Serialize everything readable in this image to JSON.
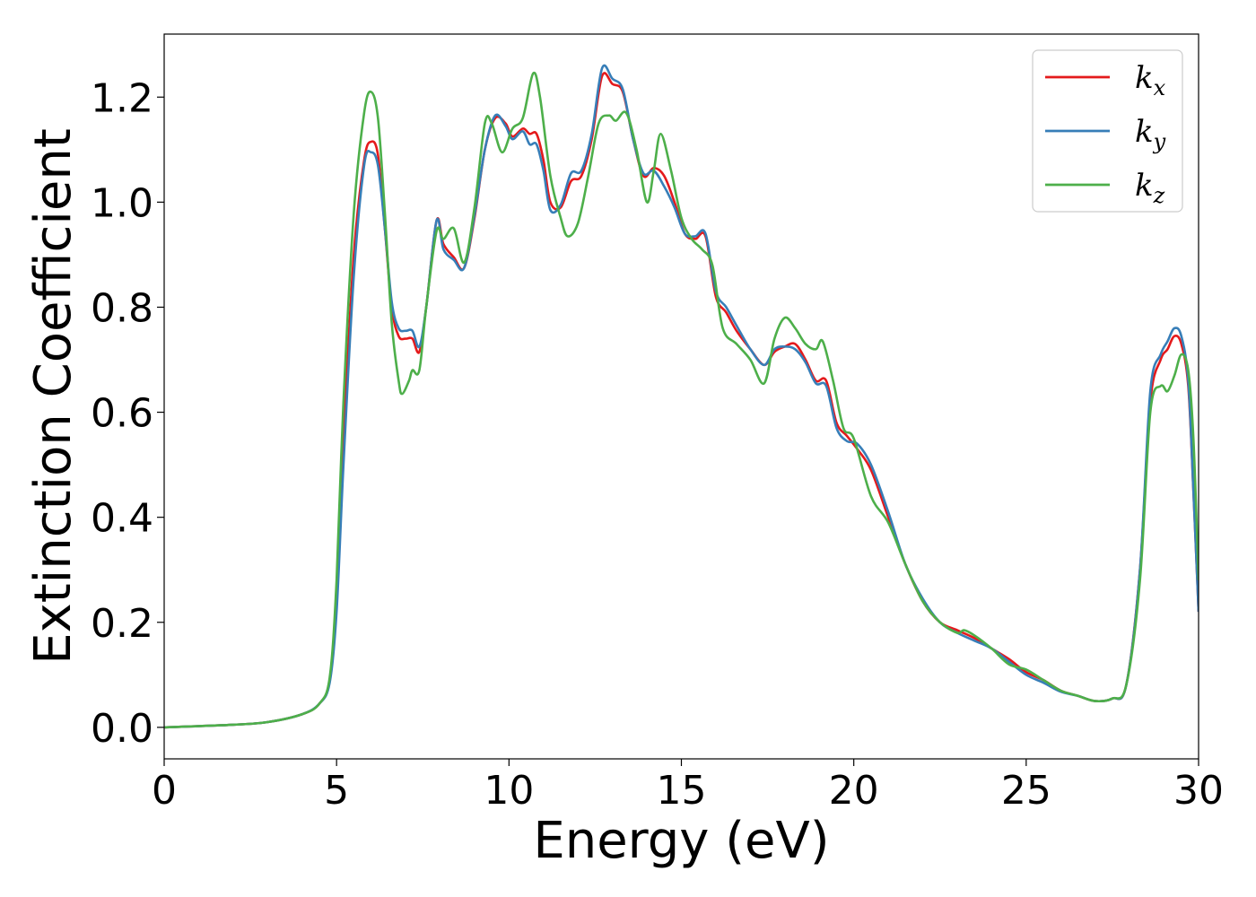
{
  "chart_data": {
    "type": "line",
    "xlabel": "Energy (eV)",
    "ylabel": "Extinction Coefficient",
    "xlim": [
      0,
      30
    ],
    "ylim": [
      -0.06,
      1.32
    ],
    "xticks": [
      0,
      5,
      10,
      15,
      20,
      25,
      30
    ],
    "xtick_labels": [
      "0",
      "5",
      "10",
      "15",
      "20",
      "25",
      "30"
    ],
    "yticks": [
      0.0,
      0.2,
      0.4,
      0.6,
      0.8,
      1.0,
      1.2
    ],
    "ytick_labels": [
      "0.0",
      "0.2",
      "0.4",
      "0.6",
      "0.8",
      "1.0",
      "1.2"
    ],
    "grid": false,
    "legend_position": "top-right",
    "series": [
      {
        "name": "k_x",
        "legend_base": "k",
        "legend_sub": "x",
        "color": "#e41a1c",
        "points": [
          [
            0,
            0
          ],
          [
            2,
            0.005
          ],
          [
            3,
            0.01
          ],
          [
            4,
            0.025
          ],
          [
            4.5,
            0.045
          ],
          [
            4.8,
            0.09
          ],
          [
            5.0,
            0.25
          ],
          [
            5.2,
            0.55
          ],
          [
            5.5,
            0.9
          ],
          [
            5.8,
            1.08
          ],
          [
            6.0,
            1.115
          ],
          [
            6.2,
            1.09
          ],
          [
            6.4,
            0.95
          ],
          [
            6.6,
            0.8
          ],
          [
            6.8,
            0.745
          ],
          [
            7.0,
            0.74
          ],
          [
            7.2,
            0.74
          ],
          [
            7.4,
            0.715
          ],
          [
            7.6,
            0.8
          ],
          [
            7.9,
            0.965
          ],
          [
            8.1,
            0.92
          ],
          [
            8.4,
            0.895
          ],
          [
            8.7,
            0.875
          ],
          [
            9.0,
            0.97
          ],
          [
            9.3,
            1.1
          ],
          [
            9.6,
            1.16
          ],
          [
            9.9,
            1.15
          ],
          [
            10.1,
            1.125
          ],
          [
            10.4,
            1.14
          ],
          [
            10.6,
            1.13
          ],
          [
            10.8,
            1.13
          ],
          [
            11.0,
            1.08
          ],
          [
            11.2,
            1.0
          ],
          [
            11.5,
            0.99
          ],
          [
            11.8,
            1.04
          ],
          [
            12.1,
            1.05
          ],
          [
            12.4,
            1.12
          ],
          [
            12.7,
            1.24
          ],
          [
            13.0,
            1.225
          ],
          [
            13.3,
            1.21
          ],
          [
            13.6,
            1.12
          ],
          [
            13.9,
            1.05
          ],
          [
            14.2,
            1.065
          ],
          [
            14.5,
            1.05
          ],
          [
            14.8,
            1.0
          ],
          [
            15.1,
            0.94
          ],
          [
            15.4,
            0.93
          ],
          [
            15.7,
            0.935
          ],
          [
            16.0,
            0.82
          ],
          [
            16.3,
            0.79
          ],
          [
            16.6,
            0.755
          ],
          [
            17.0,
            0.72
          ],
          [
            17.4,
            0.69
          ],
          [
            17.7,
            0.715
          ],
          [
            18.0,
            0.725
          ],
          [
            18.3,
            0.73
          ],
          [
            18.6,
            0.7
          ],
          [
            18.9,
            0.66
          ],
          [
            19.2,
            0.66
          ],
          [
            19.5,
            0.58
          ],
          [
            19.8,
            0.555
          ],
          [
            20.1,
            0.53
          ],
          [
            20.5,
            0.49
          ],
          [
            21.0,
            0.4
          ],
          [
            21.5,
            0.31
          ],
          [
            22.0,
            0.24
          ],
          [
            22.5,
            0.2
          ],
          [
            23.0,
            0.185
          ],
          [
            23.5,
            0.17
          ],
          [
            24.0,
            0.15
          ],
          [
            24.5,
            0.13
          ],
          [
            25.0,
            0.105
          ],
          [
            25.5,
            0.09
          ],
          [
            26.0,
            0.07
          ],
          [
            26.5,
            0.06
          ],
          [
            27.0,
            0.05
          ],
          [
            27.5,
            0.055
          ],
          [
            27.9,
            0.08
          ],
          [
            28.3,
            0.3
          ],
          [
            28.6,
            0.62
          ],
          [
            28.9,
            0.7
          ],
          [
            29.1,
            0.72
          ],
          [
            29.3,
            0.745
          ],
          [
            29.5,
            0.73
          ],
          [
            29.7,
            0.65
          ],
          [
            29.85,
            0.45
          ],
          [
            30.0,
            0.22
          ]
        ]
      },
      {
        "name": "k_y",
        "legend_base": "k",
        "legend_sub": "y",
        "color": "#377eb8",
        "points": [
          [
            0,
            0
          ],
          [
            2,
            0.005
          ],
          [
            3,
            0.01
          ],
          [
            4,
            0.025
          ],
          [
            4.5,
            0.045
          ],
          [
            4.8,
            0.085
          ],
          [
            5.0,
            0.22
          ],
          [
            5.2,
            0.5
          ],
          [
            5.5,
            0.86
          ],
          [
            5.8,
            1.07
          ],
          [
            6.0,
            1.095
          ],
          [
            6.2,
            1.07
          ],
          [
            6.4,
            0.95
          ],
          [
            6.6,
            0.81
          ],
          [
            6.8,
            0.76
          ],
          [
            7.0,
            0.755
          ],
          [
            7.2,
            0.755
          ],
          [
            7.4,
            0.725
          ],
          [
            7.6,
            0.8
          ],
          [
            7.9,
            0.965
          ],
          [
            8.1,
            0.91
          ],
          [
            8.4,
            0.89
          ],
          [
            8.7,
            0.875
          ],
          [
            9.0,
            0.975
          ],
          [
            9.3,
            1.1
          ],
          [
            9.6,
            1.165
          ],
          [
            9.9,
            1.145
          ],
          [
            10.1,
            1.12
          ],
          [
            10.4,
            1.135
          ],
          [
            10.6,
            1.11
          ],
          [
            10.8,
            1.11
          ],
          [
            11.0,
            1.06
          ],
          [
            11.2,
            0.985
          ],
          [
            11.5,
            0.995
          ],
          [
            11.8,
            1.055
          ],
          [
            12.1,
            1.06
          ],
          [
            12.4,
            1.13
          ],
          [
            12.7,
            1.255
          ],
          [
            13.0,
            1.235
          ],
          [
            13.3,
            1.215
          ],
          [
            13.6,
            1.12
          ],
          [
            13.9,
            1.055
          ],
          [
            14.2,
            1.06
          ],
          [
            14.5,
            1.03
          ],
          [
            14.8,
            0.99
          ],
          [
            15.1,
            0.94
          ],
          [
            15.4,
            0.935
          ],
          [
            15.7,
            0.94
          ],
          [
            16.0,
            0.83
          ],
          [
            16.3,
            0.8
          ],
          [
            16.6,
            0.765
          ],
          [
            17.0,
            0.72
          ],
          [
            17.4,
            0.69
          ],
          [
            17.7,
            0.72
          ],
          [
            18.0,
            0.725
          ],
          [
            18.3,
            0.72
          ],
          [
            18.6,
            0.695
          ],
          [
            18.9,
            0.655
          ],
          [
            19.2,
            0.65
          ],
          [
            19.5,
            0.57
          ],
          [
            19.8,
            0.545
          ],
          [
            20.1,
            0.54
          ],
          [
            20.5,
            0.5
          ],
          [
            21.0,
            0.41
          ],
          [
            21.5,
            0.31
          ],
          [
            22.0,
            0.245
          ],
          [
            22.5,
            0.2
          ],
          [
            23.0,
            0.18
          ],
          [
            23.5,
            0.165
          ],
          [
            24.0,
            0.15
          ],
          [
            24.5,
            0.125
          ],
          [
            25.0,
            0.1
          ],
          [
            25.5,
            0.085
          ],
          [
            26.0,
            0.068
          ],
          [
            26.5,
            0.06
          ],
          [
            27.0,
            0.05
          ],
          [
            27.5,
            0.055
          ],
          [
            27.9,
            0.08
          ],
          [
            28.3,
            0.3
          ],
          [
            28.6,
            0.64
          ],
          [
            28.9,
            0.71
          ],
          [
            29.1,
            0.735
          ],
          [
            29.3,
            0.76
          ],
          [
            29.5,
            0.745
          ],
          [
            29.7,
            0.66
          ],
          [
            29.85,
            0.45
          ],
          [
            30.0,
            0.22
          ]
        ]
      },
      {
        "name": "k_z",
        "legend_base": "k",
        "legend_sub": "z",
        "color": "#4daf4a",
        "points": [
          [
            0,
            0
          ],
          [
            2,
            0.005
          ],
          [
            3,
            0.01
          ],
          [
            4,
            0.025
          ],
          [
            4.5,
            0.045
          ],
          [
            4.8,
            0.095
          ],
          [
            5.0,
            0.28
          ],
          [
            5.2,
            0.62
          ],
          [
            5.5,
            0.98
          ],
          [
            5.8,
            1.17
          ],
          [
            6.0,
            1.21
          ],
          [
            6.2,
            1.16
          ],
          [
            6.4,
            0.98
          ],
          [
            6.6,
            0.77
          ],
          [
            6.8,
            0.66
          ],
          [
            6.9,
            0.635
          ],
          [
            7.1,
            0.66
          ],
          [
            7.2,
            0.68
          ],
          [
            7.4,
            0.68
          ],
          [
            7.6,
            0.8
          ],
          [
            7.9,
            0.945
          ],
          [
            8.1,
            0.93
          ],
          [
            8.4,
            0.95
          ],
          [
            8.7,
            0.885
          ],
          [
            9.0,
            0.99
          ],
          [
            9.3,
            1.15
          ],
          [
            9.5,
            1.15
          ],
          [
            9.8,
            1.095
          ],
          [
            10.1,
            1.14
          ],
          [
            10.4,
            1.16
          ],
          [
            10.7,
            1.245
          ],
          [
            10.9,
            1.2
          ],
          [
            11.2,
            1.05
          ],
          [
            11.5,
            0.97
          ],
          [
            11.7,
            0.935
          ],
          [
            12.0,
            0.96
          ],
          [
            12.3,
            1.05
          ],
          [
            12.6,
            1.15
          ],
          [
            12.9,
            1.165
          ],
          [
            13.1,
            1.155
          ],
          [
            13.4,
            1.17
          ],
          [
            13.7,
            1.1
          ],
          [
            14.0,
            1.0
          ],
          [
            14.2,
            1.06
          ],
          [
            14.4,
            1.13
          ],
          [
            14.7,
            1.06
          ],
          [
            15.0,
            0.97
          ],
          [
            15.3,
            0.93
          ],
          [
            15.6,
            0.91
          ],
          [
            15.9,
            0.88
          ],
          [
            16.2,
            0.76
          ],
          [
            16.6,
            0.73
          ],
          [
            17.0,
            0.7
          ],
          [
            17.4,
            0.655
          ],
          [
            17.7,
            0.74
          ],
          [
            18.0,
            0.78
          ],
          [
            18.3,
            0.76
          ],
          [
            18.6,
            0.73
          ],
          [
            18.9,
            0.72
          ],
          [
            19.1,
            0.735
          ],
          [
            19.4,
            0.66
          ],
          [
            19.7,
            0.57
          ],
          [
            20.0,
            0.55
          ],
          [
            20.5,
            0.44
          ],
          [
            21.0,
            0.39
          ],
          [
            21.5,
            0.31
          ],
          [
            22.0,
            0.24
          ],
          [
            22.5,
            0.2
          ],
          [
            23.0,
            0.18
          ],
          [
            23.2,
            0.185
          ],
          [
            23.5,
            0.175
          ],
          [
            24.0,
            0.15
          ],
          [
            24.5,
            0.12
          ],
          [
            25.0,
            0.11
          ],
          [
            25.5,
            0.09
          ],
          [
            26.0,
            0.07
          ],
          [
            26.5,
            0.06
          ],
          [
            27.0,
            0.05
          ],
          [
            27.5,
            0.055
          ],
          [
            27.9,
            0.08
          ],
          [
            28.3,
            0.28
          ],
          [
            28.6,
            0.6
          ],
          [
            28.9,
            0.65
          ],
          [
            29.1,
            0.64
          ],
          [
            29.3,
            0.67
          ],
          [
            29.5,
            0.71
          ],
          [
            29.7,
            0.68
          ],
          [
            29.85,
            0.55
          ],
          [
            30.0,
            0.28
          ]
        ]
      }
    ]
  }
}
